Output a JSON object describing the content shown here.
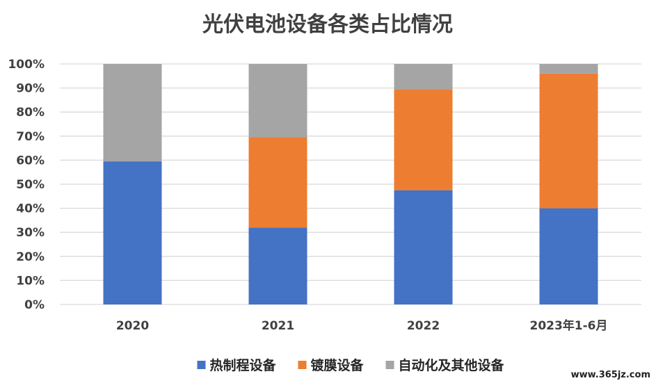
{
  "chart_data": {
    "type": "bar",
    "stacked": true,
    "title": "光伏电池设备各类占比情况",
    "categories": [
      "2020",
      "2021",
      "2022",
      "2023年1-6月"
    ],
    "series": [
      {
        "name": "热制程设备",
        "color": "#4472C4",
        "values": [
          59.5,
          32,
          47.5,
          40
        ]
      },
      {
        "name": "镀膜设备",
        "color": "#ED7D31",
        "values": [
          0,
          37.5,
          42,
          56
        ]
      },
      {
        "name": "自动化及其他设备",
        "color": "#A5A5A5",
        "values": [
          40.5,
          30.5,
          10.5,
          4
        ]
      }
    ],
    "ylim": [
      0,
      100
    ],
    "y_ticks": [
      "0%",
      "10%",
      "20%",
      "30%",
      "40%",
      "50%",
      "60%",
      "70%",
      "80%",
      "90%",
      "100%"
    ],
    "grid": true,
    "legend_position": "bottom"
  },
  "watermark": "www.365jz.com"
}
